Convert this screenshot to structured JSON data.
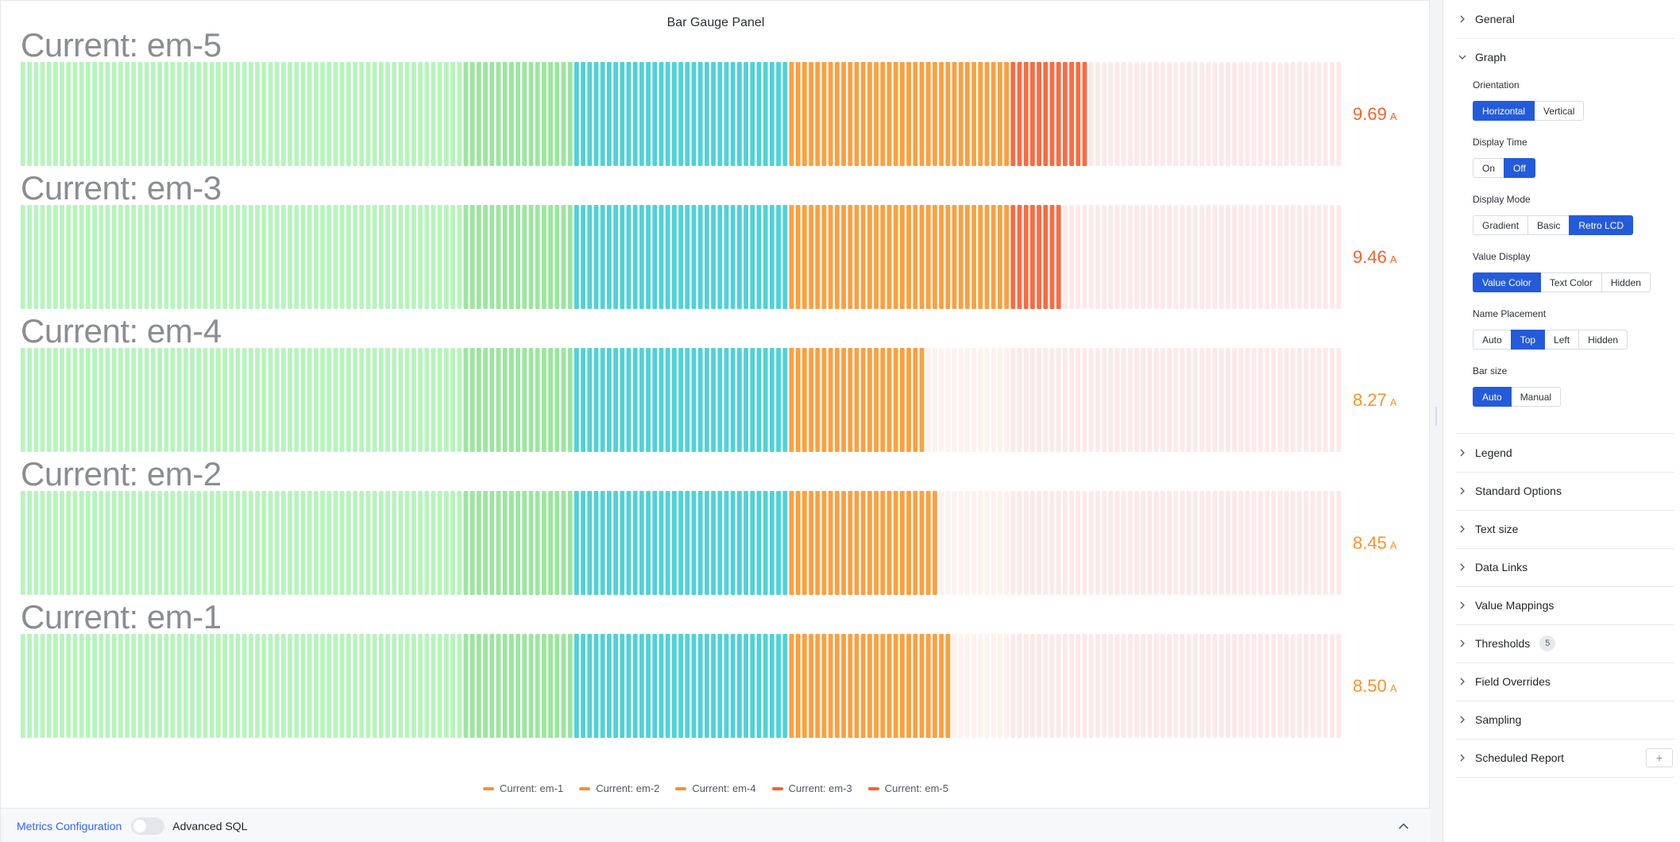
{
  "panel": {
    "title": "Bar Gauge Panel"
  },
  "gauges": [
    {
      "name": "Current: em-5",
      "value": "9.69",
      "unit": "A",
      "fill_fraction": 0.808,
      "value_color": "#f5632a"
    },
    {
      "name": "Current: em-3",
      "value": "9.46",
      "unit": "A",
      "fill_fraction": 0.786,
      "value_color": "#f5632a"
    },
    {
      "name": "Current: em-4",
      "value": "8.27",
      "unit": "A",
      "fill_fraction": 0.683,
      "value_color": "#f7932e"
    },
    {
      "name": "Current: em-2",
      "value": "8.45",
      "unit": "A",
      "fill_fraction": 0.697,
      "value_color": "#f7932e"
    },
    {
      "name": "Current: em-1",
      "value": "8.50",
      "unit": "A",
      "fill_fraction": 0.704,
      "value_color": "#f7932e"
    }
  ],
  "threshold_colors": {
    "light_green": "#b7f4bd",
    "green": "#9be69f",
    "teal": "#4fd2d8",
    "orange": "#fba040",
    "red": "#f96b43",
    "empty_warm": "#fff1ec",
    "empty_red": "#fde9e7"
  },
  "legend": [
    {
      "label": "Current: em-1",
      "color": "#f7932e"
    },
    {
      "label": "Current: em-2",
      "color": "#f7932e"
    },
    {
      "label": "Current: em-4",
      "color": "#f7932e"
    },
    {
      "label": "Current: em-3",
      "color": "#f5632a"
    },
    {
      "label": "Current: em-5",
      "color": "#f5632a"
    }
  ],
  "footer": {
    "metrics_configuration": "Metrics Configuration",
    "advanced_sql": "Advanced SQL",
    "advanced_sql_enabled": false
  },
  "sidebar": {
    "general": "General",
    "graph": "Graph",
    "orientation": {
      "label": "Orientation",
      "options": [
        "Horizontal",
        "Vertical"
      ],
      "selected": "Horizontal"
    },
    "display_time": {
      "label": "Display Time",
      "options": [
        "On",
        "Off"
      ],
      "selected": "Off"
    },
    "display_mode": {
      "label": "Display Mode",
      "options": [
        "Gradient",
        "Basic",
        "Retro LCD"
      ],
      "selected": "Retro LCD"
    },
    "value_display": {
      "label": "Value Display",
      "options": [
        "Value Color",
        "Text Color",
        "Hidden"
      ],
      "selected": "Value Color"
    },
    "name_placement": {
      "label": "Name Placement",
      "options": [
        "Auto",
        "Top",
        "Left",
        "Hidden"
      ],
      "selected": "Top"
    },
    "bar_size": {
      "label": "Bar size",
      "options": [
        "Auto",
        "Manual"
      ],
      "selected": "Auto"
    },
    "legend": "Legend",
    "standard_options": "Standard Options",
    "text_size": "Text size",
    "data_links": "Data Links",
    "value_mappings": "Value Mappings",
    "thresholds": "Thresholds",
    "thresholds_count": "5",
    "field_overrides": "Field Overrides",
    "sampling": "Sampling",
    "scheduled_report": "Scheduled Report",
    "add_symbol": "+"
  }
}
